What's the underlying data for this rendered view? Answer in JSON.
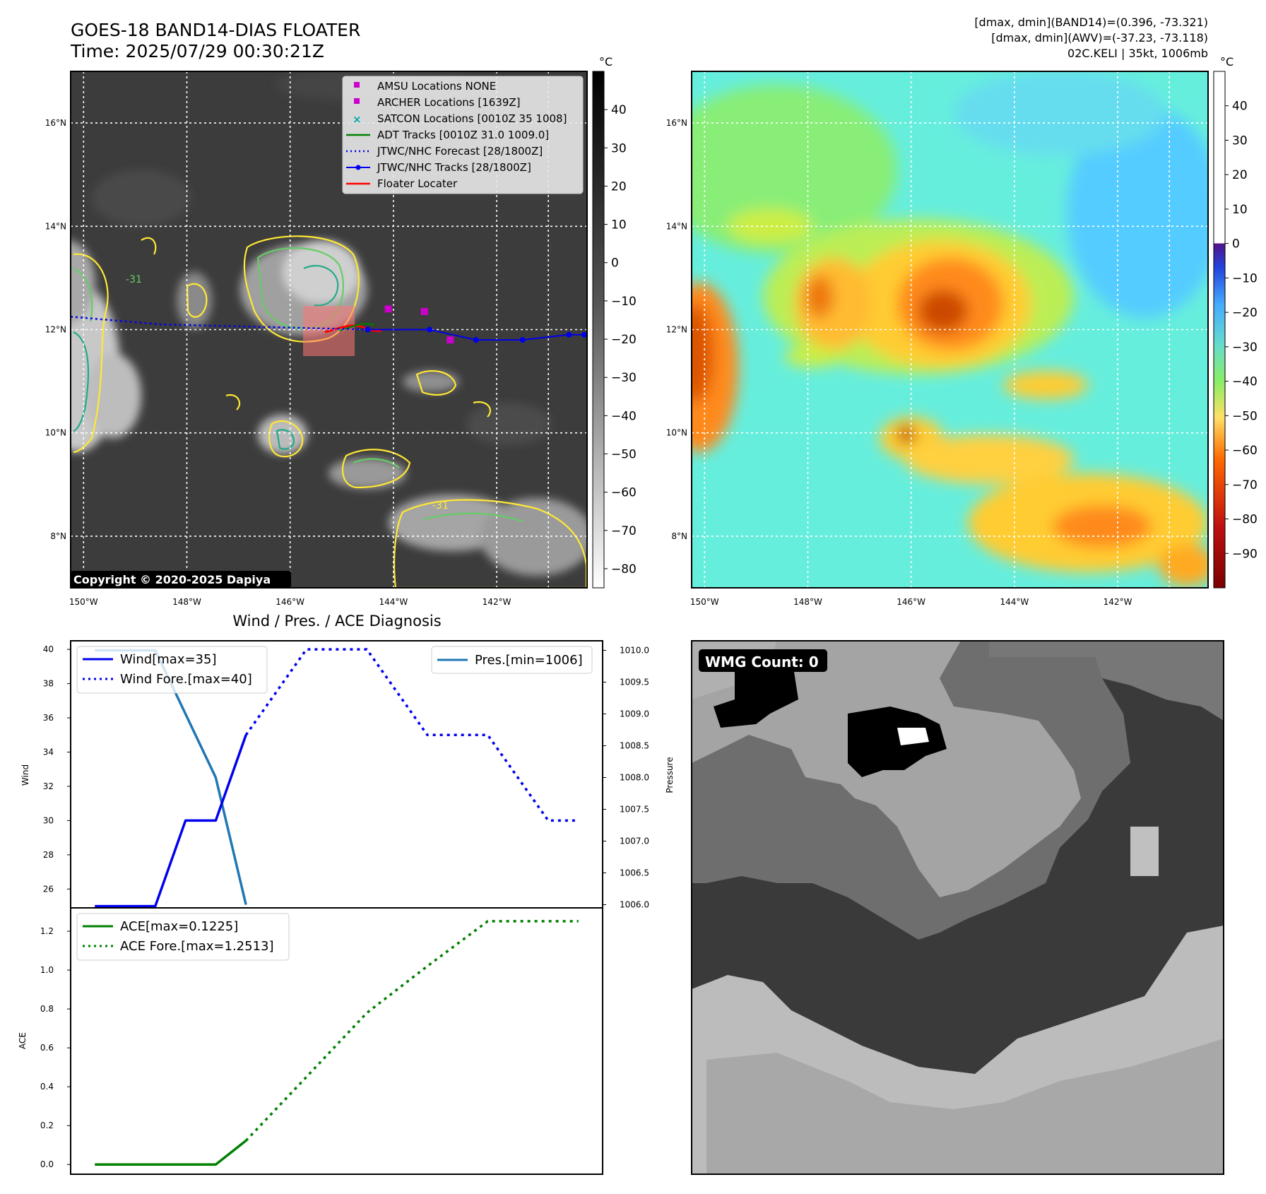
{
  "header": {
    "title": "GOES-18 BAND14-DIAS FLOATER",
    "time": "Time: 2025/07/29 00:30:21Z",
    "dmax_band14": "[dmax, dmin](BAND14)=(0.396, -73.321)",
    "dmax_awv": "[dmax, dmin](AWV)=(-37.23, -73.118)",
    "storm": "02C.KELI | 35kt, 1006mb"
  },
  "copyright": "Copyright © 2020-2025 Dapiya",
  "colorbar_unit": "°C",
  "colors": {
    "wind": "#0000ee",
    "pressure": "#1f77b4",
    "ace": "#008000",
    "contour_yellow": "#ffe833",
    "contour_green": "#66cc66",
    "contour_teal": "#22aa88",
    "archer_marker": "#cc00cc",
    "floater": "#ff0000"
  },
  "map_axes": {
    "lat_labels": [
      "16°N",
      "14°N",
      "12°N",
      "10°N",
      "8°N"
    ],
    "lat_values": [
      16,
      14,
      12,
      10,
      8
    ],
    "lon_labels": [
      "150°W",
      "148°W",
      "146°W",
      "144°W",
      "142°W"
    ],
    "lon_values": [
      -150,
      -148,
      -146,
      -144,
      -142
    ],
    "lon_range": [
      -150.25,
      -140.25
    ],
    "lat_range": [
      7,
      17
    ]
  },
  "ir_panel": {
    "contour_labels": [
      "-31",
      "-31"
    ],
    "legend": [
      {
        "label": "AMSU Locations NONE",
        "icon": "square-marker-icon"
      },
      {
        "label": "ARCHER Locations [1639Z]",
        "icon": "square-marker-icon"
      },
      {
        "label": "SATCON Locations [0010Z 35 1008]",
        "icon": "x-marker-icon"
      },
      {
        "label": "ADT Tracks [0010Z 31.0 1009.0]",
        "icon": "line-icon"
      },
      {
        "label": "JTWC/NHC Forecast [28/1800Z]",
        "icon": "dotted-line-icon"
      },
      {
        "label": "JTWC/NHC Tracks [28/1800Z]",
        "icon": "line-dot-icon"
      },
      {
        "label": "Floater Locater",
        "icon": "line-icon"
      }
    ],
    "colorbar_ticks": [
      "40",
      "30",
      "20",
      "10",
      "0",
      "−10",
      "−20",
      "−30",
      "−40",
      "−50",
      "−60",
      "−70",
      "−80"
    ],
    "colorbar_values": [
      40,
      30,
      20,
      10,
      0,
      -10,
      -20,
      -30,
      -40,
      -50,
      -60,
      -70,
      -80
    ],
    "colorbar_range": [
      -85,
      50
    ],
    "jtwc_track": [
      {
        "lon": -144.5,
        "lat": 12.0
      },
      {
        "lon": -143.3,
        "lat": 12.0
      },
      {
        "lon": -142.4,
        "lat": 11.8
      },
      {
        "lon": -141.5,
        "lat": 11.8
      },
      {
        "lon": -140.6,
        "lat": 11.9
      },
      {
        "lon": -140.3,
        "lat": 11.9
      }
    ],
    "jtwc_forecast": [
      {
        "lon": -150.25,
        "lat": 12.25
      },
      {
        "lon": -148.5,
        "lat": 12.1
      },
      {
        "lon": -146.5,
        "lat": 12.05
      },
      {
        "lon": -144.5,
        "lat": 12.0
      }
    ],
    "archer_points": [
      {
        "lon": -144.1,
        "lat": 12.4
      },
      {
        "lon": -143.4,
        "lat": 12.35
      },
      {
        "lon": -142.9,
        "lat": 11.8
      }
    ]
  },
  "awv_panel": {
    "colorbar_ticks": [
      "40",
      "30",
      "20",
      "10",
      "0",
      "−10",
      "−20",
      "−30",
      "−40",
      "−50",
      "−60",
      "−70",
      "−80",
      "−90"
    ],
    "colorbar_values": [
      40,
      30,
      20,
      10,
      0,
      -10,
      -20,
      -30,
      -40,
      -50,
      -60,
      -70,
      -80,
      -90
    ],
    "colorbar_range": [
      -100,
      50
    ]
  },
  "wmg_panel": {
    "label": "WMG Count: 0"
  },
  "chart_data": [
    {
      "type": "line",
      "title": "Wind / Pres. / ACE Diagnosis",
      "ylabel": "Wind",
      "y2label": "Pressure",
      "ylim": [
        24.9,
        40.5
      ],
      "y2lim": [
        1005.95,
        1010.15
      ],
      "xlim": [
        -0.8,
        16.8
      ],
      "yticks": [
        26,
        28,
        30,
        32,
        34,
        36,
        38,
        40
      ],
      "y2ticks": [
        "1006.0",
        "1006.5",
        "1007.0",
        "1007.5",
        "1008.0",
        "1008.5",
        "1009.0",
        "1009.5",
        "1010.0"
      ],
      "legend_left": [
        "Wind[max=35]",
        "Wind Fore.[max=40]"
      ],
      "legend_right": [
        "Pres.[min=1006]"
      ],
      "series": [
        {
          "name": "Wind[max=35]",
          "x": [
            0,
            2,
            3,
            4,
            5
          ],
          "values": [
            25,
            25,
            30,
            30,
            35
          ]
        },
        {
          "name": "Wind Fore.[max=40]",
          "x": [
            5,
            7,
            9,
            11,
            13,
            15,
            16
          ],
          "values": [
            35,
            40,
            40,
            35,
            35,
            30,
            30
          ]
        },
        {
          "name": "Pres.[min=1006]",
          "x": [
            0,
            2,
            4,
            5
          ],
          "values": [
            1010,
            1010,
            1008,
            1006
          ]
        }
      ]
    },
    {
      "type": "line",
      "ylabel": "ACE",
      "ylim": [
        -0.05,
        1.32
      ],
      "xlim": [
        -0.8,
        16.8
      ],
      "yticks": [
        "0.0",
        "0.2",
        "0.4",
        "0.6",
        "0.8",
        "1.0",
        "1.2"
      ],
      "legend": [
        "ACE[max=0.1225]",
        "ACE Fore.[max=1.2513]"
      ],
      "series": [
        {
          "name": "ACE[max=0.1225]",
          "x": [
            0,
            2,
            4,
            5
          ],
          "values": [
            0,
            0,
            0,
            0.1225
          ]
        },
        {
          "name": "ACE Fore.[max=1.2513]",
          "x": [
            5,
            7,
            9,
            11,
            13,
            16
          ],
          "values": [
            0.1225,
            0.45,
            0.78,
            1.02,
            1.2513,
            1.2513
          ]
        }
      ]
    }
  ]
}
